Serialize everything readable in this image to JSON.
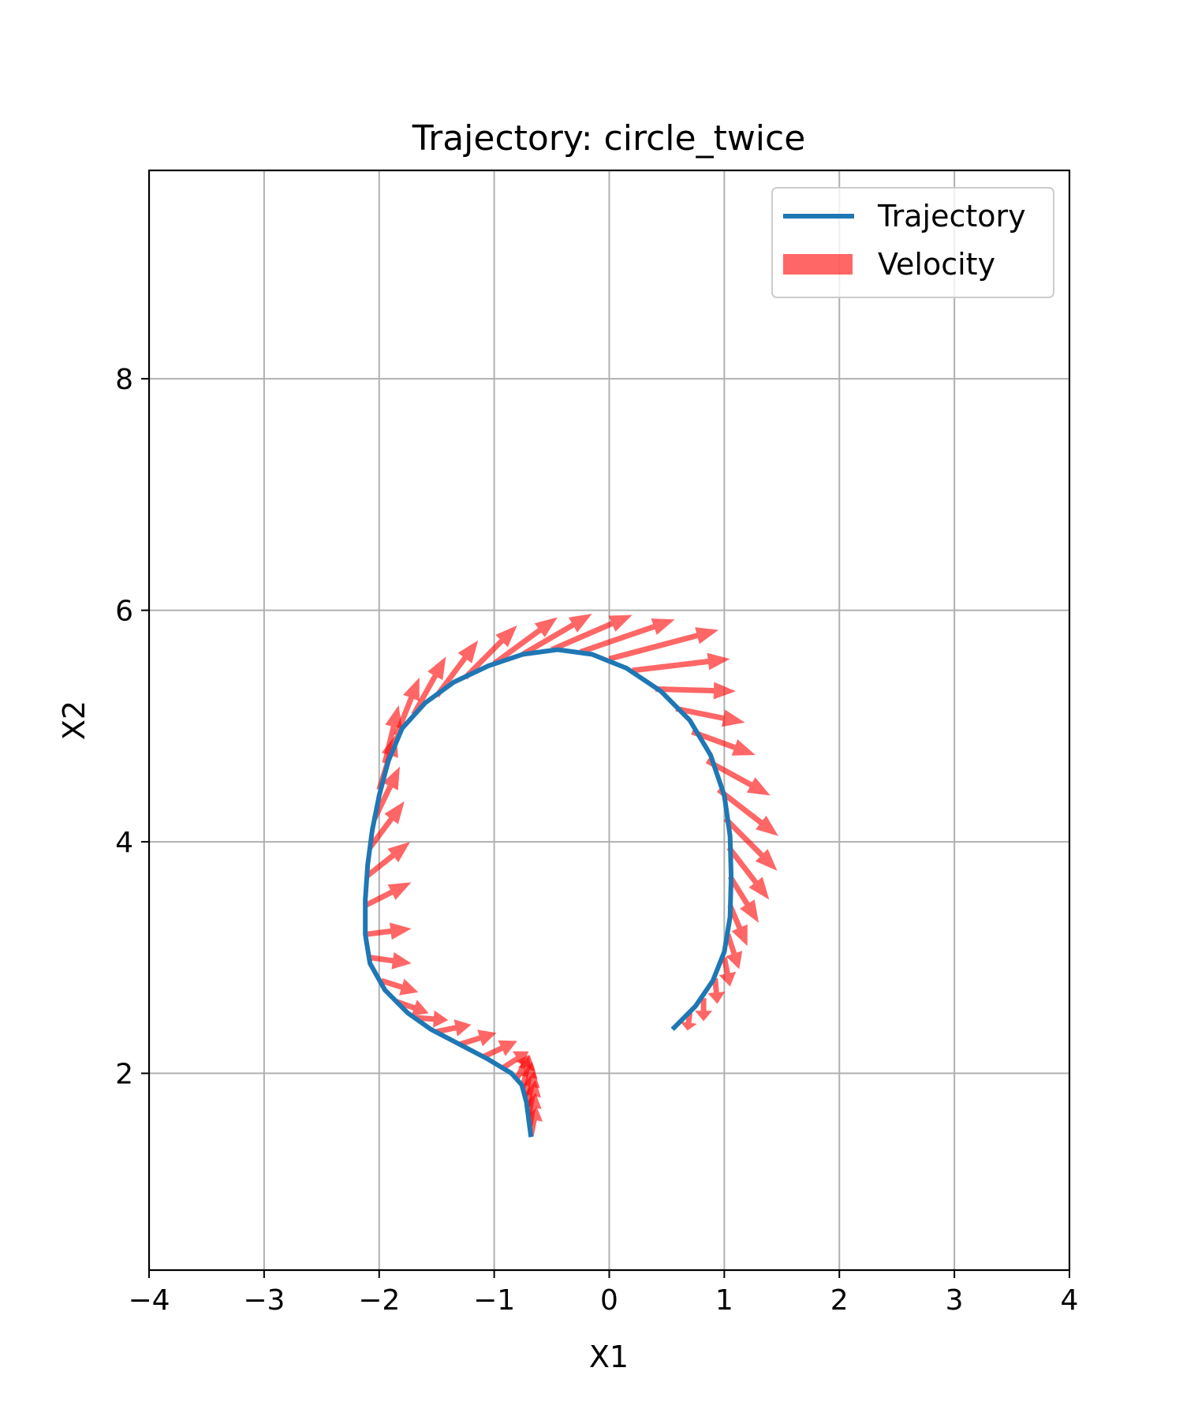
{
  "chart_data": {
    "type": "line",
    "title": "Trajectory: circle_twice",
    "xlabel": "X1",
    "ylabel": "X2",
    "xlim": [
      -4,
      4
    ],
    "ylim": [
      0.3,
      9.8
    ],
    "xticks": [
      -4,
      -3,
      -2,
      -1,
      0,
      1,
      2,
      3,
      4
    ],
    "xtick_labels": [
      "−4",
      "−3",
      "−2",
      "−1",
      "0",
      "1",
      "2",
      "3",
      "4"
    ],
    "yticks": [
      2,
      4,
      6,
      8
    ],
    "ytick_labels": [
      "2",
      "4",
      "6",
      "8"
    ],
    "grid": true,
    "legend_position": "top-right",
    "colors": {
      "trajectory": "#1f77b4",
      "velocity": "#ff0000"
    },
    "series": [
      {
        "name": "Trajectory",
        "type": "line",
        "points": [
          [
            -0.68,
            1.45
          ],
          [
            -0.7,
            1.6
          ],
          [
            -0.72,
            1.75
          ],
          [
            -0.76,
            1.9
          ],
          [
            -0.85,
            2.0
          ],
          [
            -1.05,
            2.12
          ],
          [
            -1.3,
            2.25
          ],
          [
            -1.55,
            2.38
          ],
          [
            -1.75,
            2.52
          ],
          [
            -1.95,
            2.72
          ],
          [
            -2.08,
            2.95
          ],
          [
            -2.12,
            3.2
          ],
          [
            -2.12,
            3.5
          ],
          [
            -2.1,
            3.8
          ],
          [
            -2.06,
            4.1
          ],
          [
            -2.0,
            4.4
          ],
          [
            -1.92,
            4.7
          ],
          [
            -1.8,
            4.98
          ],
          [
            -1.6,
            5.2
          ],
          [
            -1.35,
            5.38
          ],
          [
            -1.05,
            5.52
          ],
          [
            -0.75,
            5.62
          ],
          [
            -0.45,
            5.66
          ],
          [
            -0.15,
            5.62
          ],
          [
            0.15,
            5.5
          ],
          [
            0.45,
            5.3
          ],
          [
            0.7,
            5.05
          ],
          [
            0.88,
            4.75
          ],
          [
            1.0,
            4.4
          ],
          [
            1.05,
            4.05
          ],
          [
            1.06,
            3.7
          ],
          [
            1.05,
            3.35
          ],
          [
            1.0,
            3.05
          ],
          [
            0.9,
            2.8
          ],
          [
            0.75,
            2.58
          ],
          [
            0.55,
            2.38
          ]
        ]
      },
      {
        "name": "Velocity",
        "type": "quiver",
        "vectors": [
          [
            -0.68,
            1.46,
            0.05,
            0.25
          ],
          [
            -0.69,
            1.55,
            0.05,
            0.28
          ],
          [
            -0.7,
            1.64,
            0.06,
            0.3
          ],
          [
            -0.71,
            1.72,
            0.06,
            0.3
          ],
          [
            -0.73,
            1.8,
            0.06,
            0.3
          ],
          [
            -0.75,
            1.88,
            0.06,
            0.28
          ],
          [
            -0.8,
            1.96,
            0.1,
            0.2
          ],
          [
            -0.92,
            2.05,
            0.22,
            0.14
          ],
          [
            -1.1,
            2.14,
            0.3,
            0.14
          ],
          [
            -1.3,
            2.25,
            0.32,
            0.1
          ],
          [
            -1.5,
            2.36,
            0.3,
            0.06
          ],
          [
            -1.68,
            2.48,
            0.28,
            -0.02
          ],
          [
            -1.85,
            2.62,
            0.28,
            -0.1
          ],
          [
            -1.98,
            2.8,
            0.32,
            -0.1
          ],
          [
            -2.08,
            3.0,
            0.36,
            -0.05
          ],
          [
            -2.12,
            3.2,
            0.4,
            0.05
          ],
          [
            -2.12,
            3.45,
            0.4,
            0.2
          ],
          [
            -2.11,
            3.7,
            0.38,
            0.3
          ],
          [
            -2.08,
            3.95,
            0.3,
            0.4
          ],
          [
            -2.04,
            4.2,
            0.22,
            0.45
          ],
          [
            -2.0,
            4.45,
            0.15,
            0.48
          ],
          [
            -1.95,
            4.68,
            0.12,
            0.5
          ],
          [
            -1.85,
            4.92,
            0.2,
            0.5
          ],
          [
            -1.7,
            5.1,
            0.28,
            0.5
          ],
          [
            -1.5,
            5.26,
            0.36,
            0.48
          ],
          [
            -1.25,
            5.42,
            0.45,
            0.45
          ],
          [
            -1.0,
            5.54,
            0.55,
            0.4
          ],
          [
            -0.75,
            5.62,
            0.6,
            0.35
          ],
          [
            -0.5,
            5.66,
            0.7,
            0.3
          ],
          [
            -0.25,
            5.64,
            0.82,
            0.28
          ],
          [
            0.0,
            5.58,
            0.95,
            0.25
          ],
          [
            0.2,
            5.48,
            0.85,
            0.1
          ],
          [
            0.4,
            5.32,
            0.7,
            -0.02
          ],
          [
            0.58,
            5.15,
            0.6,
            -0.12
          ],
          [
            0.72,
            4.95,
            0.55,
            -0.2
          ],
          [
            0.85,
            4.7,
            0.55,
            -0.3
          ],
          [
            0.95,
            4.45,
            0.52,
            -0.4
          ],
          [
            1.01,
            4.2,
            0.45,
            -0.45
          ],
          [
            1.04,
            3.95,
            0.35,
            -0.45
          ],
          [
            1.05,
            3.7,
            0.25,
            -0.4
          ],
          [
            1.05,
            3.45,
            0.15,
            -0.35
          ],
          [
            1.03,
            3.2,
            0.1,
            -0.3
          ],
          [
            1.0,
            3.0,
            0.05,
            -0.25
          ],
          [
            0.92,
            2.82,
            0.02,
            -0.22
          ],
          [
            0.82,
            2.65,
            0.0,
            -0.2
          ],
          [
            0.7,
            2.52,
            -0.02,
            -0.15
          ]
        ]
      }
    ],
    "legend": [
      {
        "label": "Trajectory",
        "marker": "line"
      },
      {
        "label": "Velocity",
        "marker": "patch"
      }
    ]
  }
}
